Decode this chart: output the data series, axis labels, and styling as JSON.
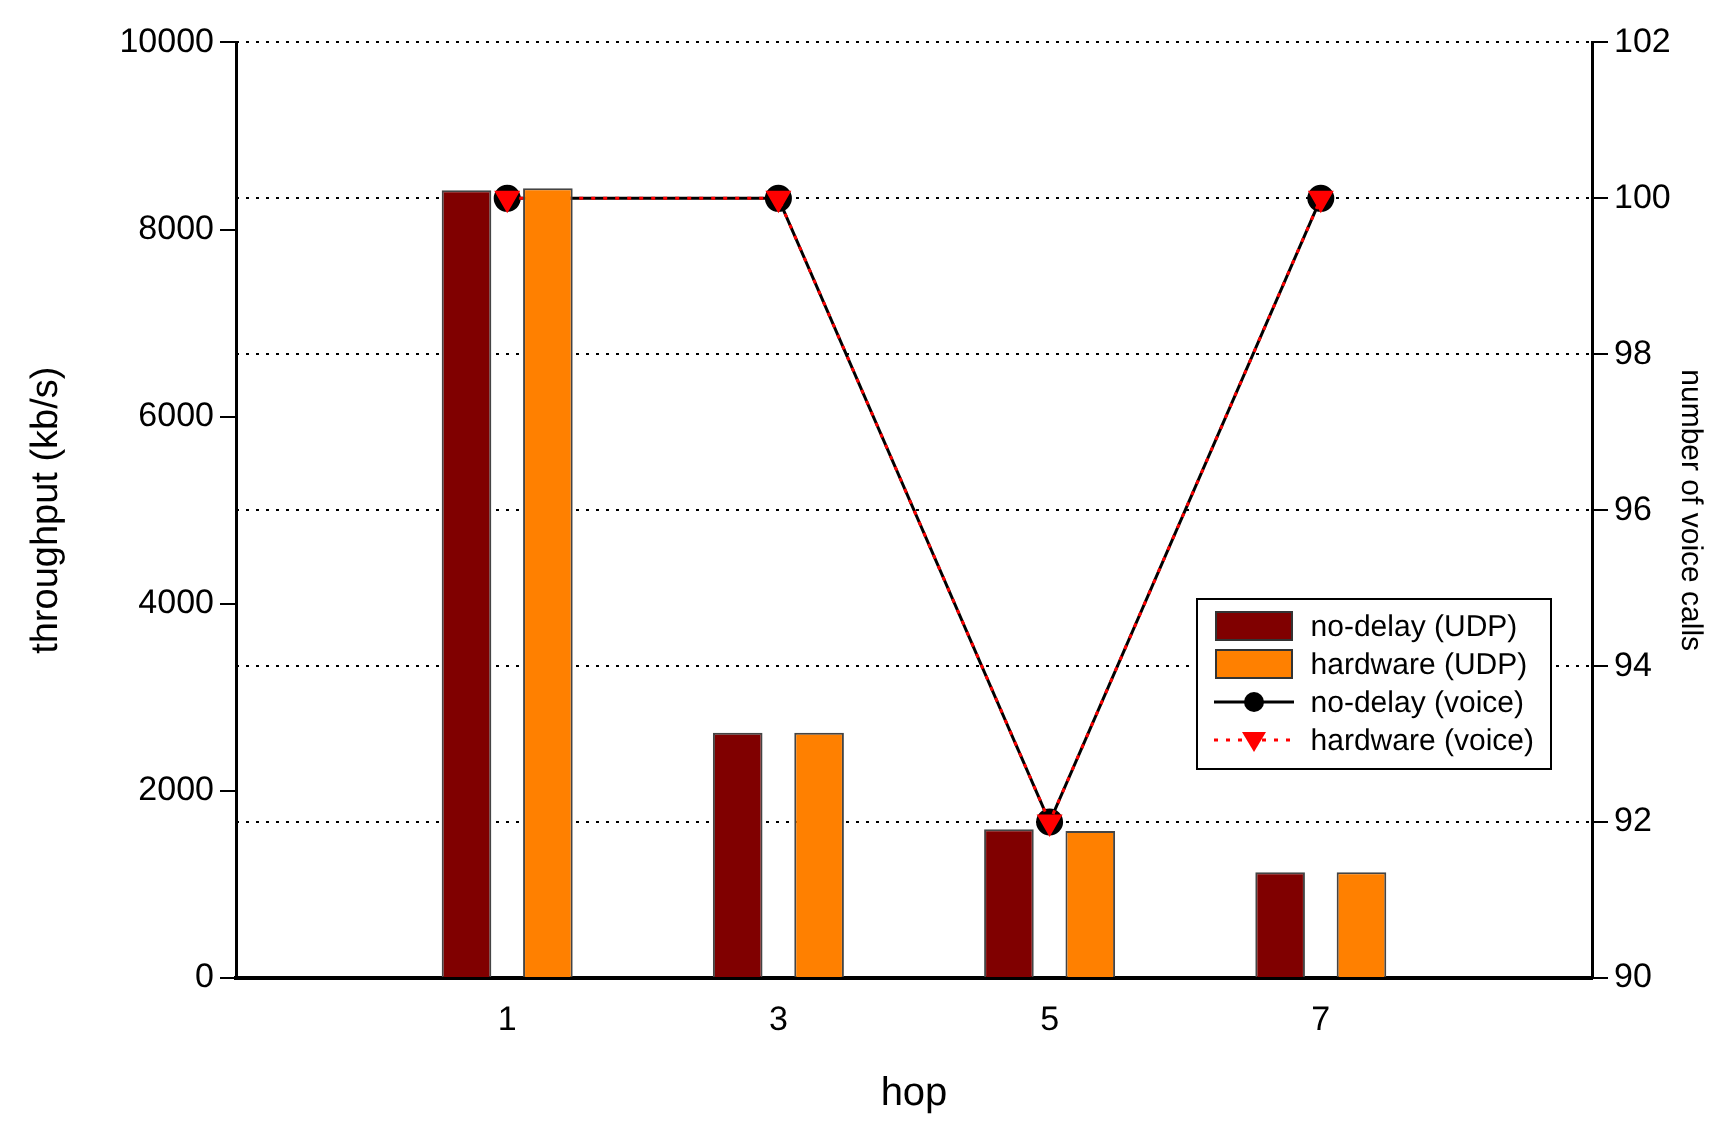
{
  "chart_data": {
    "type": "bar",
    "xlabel": "hop",
    "ylabel": "throughput (kb/s)",
    "y2label": "number of voice calls",
    "x": [
      1,
      3,
      5,
      7
    ],
    "xlim": [
      -1,
      9
    ],
    "xticks": [
      1,
      3,
      5,
      7
    ],
    "ylim": [
      0,
      10000
    ],
    "yticks": [
      0,
      2000,
      4000,
      6000,
      8000,
      10000
    ],
    "y2lim": [
      90,
      102
    ],
    "y2ticks": [
      90,
      92,
      94,
      96,
      98,
      100,
      102
    ],
    "grid": "y",
    "legend": "right",
    "series": [
      {
        "name": "no-delay (UDP)",
        "color": "#800000",
        "values": [
          8420,
          2620,
          1590,
          1130
        ]
      },
      {
        "name": "hardware (UDP)",
        "color": "#ff8000",
        "values": [
          8440,
          2620,
          1570,
          1130
        ]
      },
      {
        "name": "no-delay (voice)",
        "type": "line",
        "axis": "y2",
        "color": "#000000",
        "marker": "circle",
        "line_style": "solid",
        "values": [
          100,
          100,
          92,
          100
        ]
      },
      {
        "name": "hardware (voice)",
        "type": "line",
        "axis": "y2",
        "color": "#ff0000",
        "marker": "triangle",
        "line_style": "dotted",
        "values": [
          100,
          100,
          92,
          100
        ]
      }
    ]
  }
}
